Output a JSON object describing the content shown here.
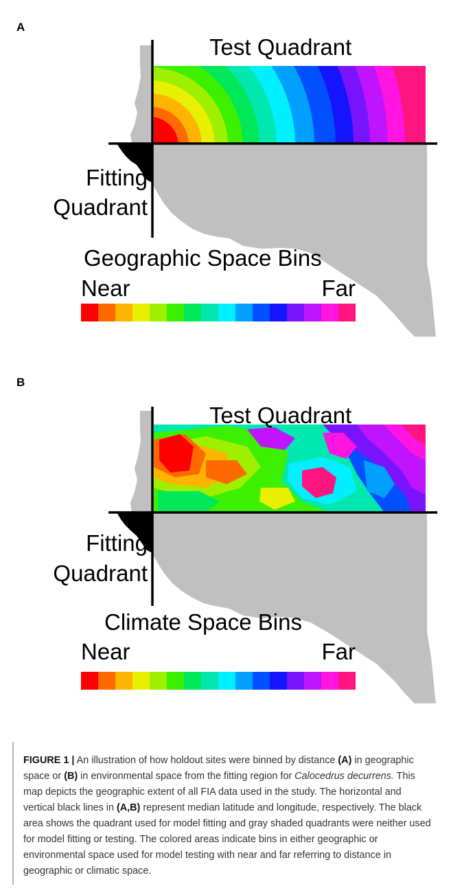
{
  "panels": [
    {
      "letter": "A",
      "test_label": "Test Quadrant",
      "fitting_label_line1": "Fitting",
      "fitting_label_line2": "Quadrant",
      "legend_title": "Geographic Space Bins",
      "near_label": "Near",
      "far_label": "Far"
    },
    {
      "letter": "B",
      "test_label": "Test Quadrant",
      "fitting_label_line1": "Fitting",
      "fitting_label_line2": "Quadrant",
      "legend_title": "Climate Space Bins",
      "near_label": "Near",
      "far_label": "Far"
    }
  ],
  "legend_colors": [
    "#ff0000",
    "#ff6a00",
    "#ffb400",
    "#e6f000",
    "#9ef000",
    "#3cf000",
    "#00e85a",
    "#00e8b0",
    "#00f0ff",
    "#00a0ff",
    "#0050ff",
    "#1414ff",
    "#7a14ff",
    "#c014ff",
    "#ff14e0",
    "#ff1480"
  ],
  "gray_color": "#c0c0c0",
  "caption": {
    "fig_label": "FIGURE 1 |",
    "p1": " An illustration of how holdout sites were binned by distance ",
    "b1": "(A)",
    "p2": " in geographic space or ",
    "b2": "(B)",
    "p3": " in environmental space from the fitting region for ",
    "species": "Calocedrus decurrens.",
    "p4": " This map depicts the geographic extent of all FIA data used in the study. The horizontal and vertical black lines in ",
    "b3": "(A,B)",
    "p5": " represent median latitude and longitude, respectively. The black area shows the quadrant used for model fitting and gray shaded quadrants were neither used for model fitting or testing. The colored areas indicate bins in either geographic or environmental space used for model testing with near and far referring to distance in geographic or climatic space."
  }
}
